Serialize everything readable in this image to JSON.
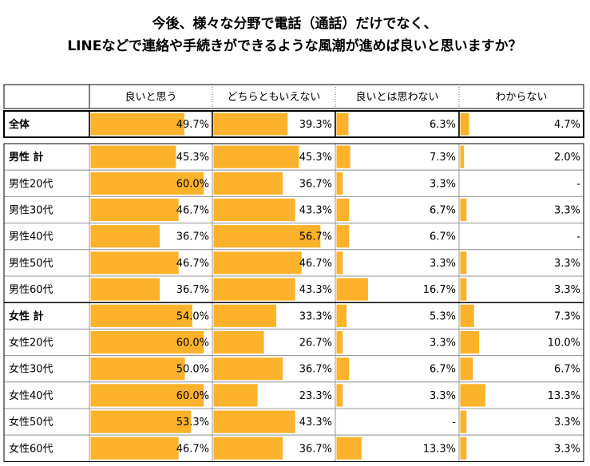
{
  "chart_data": {
    "type": "bar_table",
    "title": "今後、様々な分野で電話（通話）だけでなく、",
    "subtitle": "LINEなどで連絡や手続きができるような風潮が進めば良いと思いますか？",
    "categories": [
      "全体",
      "男性 計",
      "男性20代",
      "男性30代",
      "男性40代",
      "男性50代",
      "男性60代",
      "女性 計",
      "女性20代",
      "女性30代",
      "女性40代",
      "女性50代",
      "女性60代"
    ],
    "series": [
      {
        "name": "良いと思う",
        "color": "#fdb22b",
        "values": [
          49.7,
          45.3,
          60.0,
          46.7,
          36.7,
          46.7,
          36.7,
          54.0,
          60.0,
          50.0,
          60.0,
          53.3,
          46.7
        ],
        "value_labels": [
          "49.7%",
          "45.3%",
          "60.0%",
          "46.7%",
          "36.7%",
          "46.7%",
          "36.7%",
          "54.0%",
          "60.0%",
          "50.0%",
          "60.0%",
          "53.3%",
          "46.7%"
        ]
      },
      {
        "name": "どちらともいえない",
        "color": "#fdb22b",
        "values": [
          39.3,
          45.3,
          36.7,
          43.3,
          56.7,
          46.7,
          43.3,
          33.3,
          26.7,
          36.7,
          23.3,
          43.3,
          36.7
        ],
        "value_labels": [
          "39.3%",
          "45.3%",
          "36.7%",
          "43.3%",
          "56.7%",
          "46.7%",
          "43.3%",
          "33.3%",
          "26.7%",
          "36.7%",
          "23.3%",
          "43.3%",
          "36.7%"
        ]
      },
      {
        "name": "良いとは思わない",
        "color": "#fdb22b",
        "values": [
          6.3,
          7.3,
          3.3,
          6.7,
          6.7,
          3.3,
          16.7,
          5.3,
          3.3,
          6.7,
          3.3,
          null,
          13.3
        ],
        "value_labels": [
          "6.3%",
          "7.3%",
          "3.3%",
          "6.7%",
          "6.7%",
          "3.3%",
          "16.7%",
          "5.3%",
          "3.3%",
          "6.7%",
          "3.3%",
          "-",
          "13.3%"
        ]
      },
      {
        "name": "わからない",
        "color": "#fdb22b",
        "values": [
          4.7,
          2.0,
          null,
          3.3,
          null,
          3.3,
          3.3,
          7.3,
          10.0,
          6.7,
          13.3,
          3.3,
          3.3
        ],
        "value_labels": [
          "4.7%",
          "2.0%",
          "-",
          "3.3%",
          "-",
          "3.3%",
          "3.3%",
          "7.3%",
          "10.0%",
          "6.7%",
          "13.3%",
          "3.3%",
          "3.3%"
        ]
      }
    ]
  }
}
